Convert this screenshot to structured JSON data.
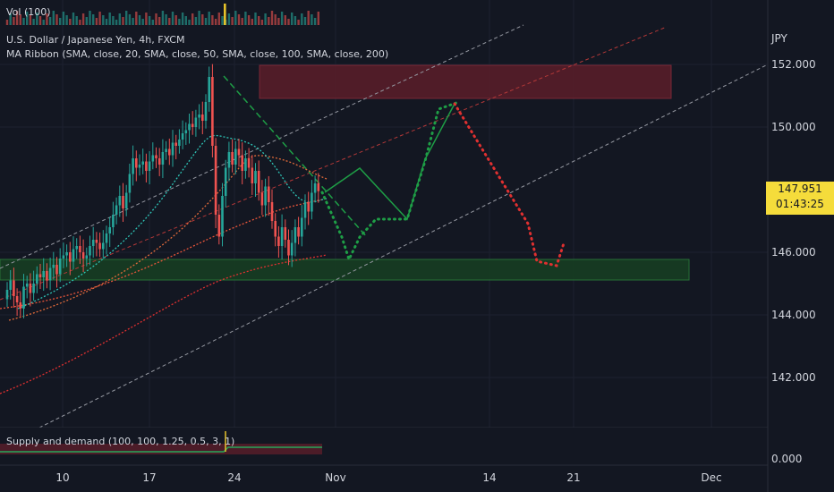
{
  "chart_data": {
    "type": "candlestick",
    "symbol": "U.S. Dollar / Japanese Yen, 4h, FXCM",
    "indicator_ma": "MA Ribbon (SMA, close, 20, SMA, close, 50, SMA, close, 100, SMA, close, 200)",
    "indicator_vol": "Vol (100)",
    "indicator_sd": "Supply and demand (100, 100, 1.25, 0.5, 3, 1)",
    "currency": "JPY",
    "y_ticks": [
      "152.000",
      "150.000",
      "146.000",
      "144.000",
      "142.000"
    ],
    "sd_tick": "0.000",
    "x_ticks": [
      "10",
      "17",
      "24",
      "Nov",
      "14",
      "21",
      "Dec"
    ],
    "last_price": "147.951",
    "countdown": "01:43:25",
    "ylim": [
      141,
      153
    ],
    "closes": [
      144.8,
      145.1,
      144.6,
      144.4,
      144.2,
      144.9,
      145.0,
      144.7,
      145.0,
      145.3,
      145.2,
      145.4,
      145.1,
      145.5,
      145.6,
      145.3,
      145.8,
      145.9,
      146.0,
      145.7,
      146.1,
      146.2,
      146.0,
      145.8,
      145.9,
      146.2,
      146.4,
      146.3,
      146.1,
      146.3,
      146.6,
      146.8,
      147.2,
      147.5,
      147.8,
      147.4,
      147.9,
      148.5,
      149.0,
      148.7,
      148.8,
      148.9,
      148.6,
      148.9,
      149.1,
      149.0,
      148.8,
      149.2,
      149.3,
      149.1,
      149.5,
      149.4,
      149.6,
      149.8,
      149.9,
      150.1,
      150.0,
      150.3,
      150.4,
      150.2,
      150.8,
      151.6,
      149.4,
      147.2,
      146.5,
      147.8,
      148.7,
      149.2,
      148.8,
      149.3,
      149.1,
      148.6,
      149.0,
      148.7,
      148.2,
      148.6,
      147.9,
      147.5,
      148.1,
      147.6,
      147.0,
      146.5,
      146.2,
      146.8,
      146.4,
      145.9,
      146.3,
      146.8,
      146.5,
      147.1,
      147.6,
      147.3,
      147.9,
      148.2,
      147.951
    ]
  }
}
